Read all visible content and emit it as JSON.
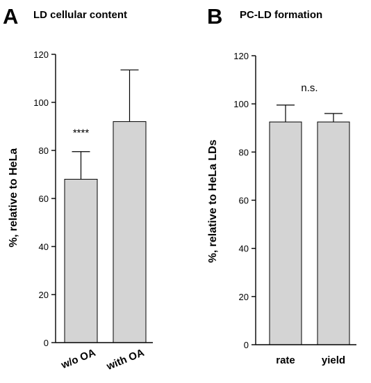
{
  "chart_data": [
    {
      "type": "bar",
      "panel_letter": "A",
      "title": "LD cellular content",
      "ylabel": "%, relative to HeLa",
      "xlabel": "",
      "ylim": [
        0,
        120
      ],
      "yticks": [
        0,
        20,
        40,
        60,
        80,
        100,
        120
      ],
      "categories": [
        "w/o OA",
        "with OA"
      ],
      "values": [
        68,
        92
      ],
      "errors": [
        11.5,
        21.5
      ],
      "bar_color": "#d4d4d4",
      "annotations": [
        {
          "text": "****",
          "category": "w/o OA"
        }
      ],
      "category_labels_rotated": true,
      "grid": false
    },
    {
      "type": "bar",
      "panel_letter": "B",
      "title": "PC-LD formation",
      "ylabel": "%, relative to HeLa LDs",
      "xlabel": "",
      "ylim": [
        0,
        120
      ],
      "yticks": [
        0,
        20,
        40,
        60,
        80,
        100,
        120
      ],
      "categories": [
        "rate",
        "yield"
      ],
      "values": [
        92.5,
        92.5
      ],
      "errors": [
        7,
        3.5
      ],
      "bar_color": "#d4d4d4",
      "annotations": [
        {
          "text": "n.s.",
          "position": "above-bars"
        }
      ],
      "category_labels_rotated": false,
      "grid": false
    }
  ]
}
